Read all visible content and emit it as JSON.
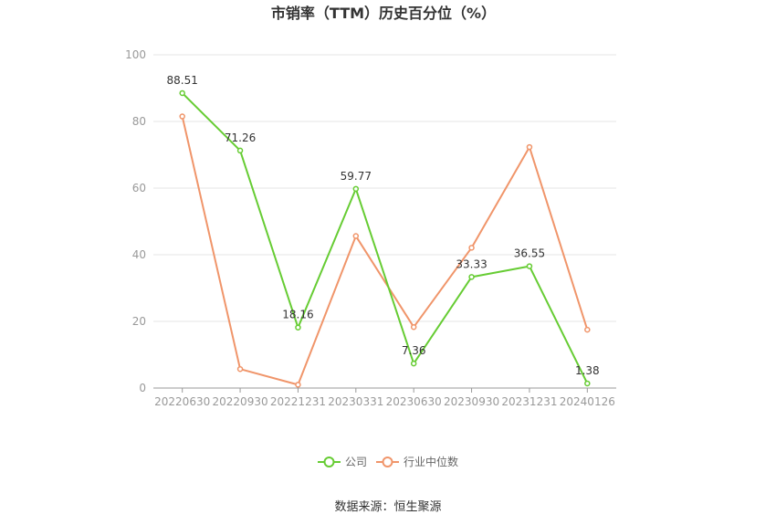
{
  "chart_data": {
    "type": "line",
    "title": "市销率（TTM）历史百分位（%）",
    "categories": [
      "20220630",
      "20220930",
      "20221231",
      "20230331",
      "20230630",
      "20230930",
      "20231231",
      "20240126"
    ],
    "ylim": [
      0,
      100
    ],
    "yticks": [
      0,
      20,
      40,
      60,
      80,
      100
    ],
    "grid": true,
    "legend_position": "bottom-center",
    "series": [
      {
        "name": "公司",
        "color": "#66cc33",
        "values": [
          88.51,
          71.26,
          18.16,
          59.77,
          7.36,
          33.33,
          36.55,
          1.38
        ],
        "labels": [
          "88.51",
          "71.26",
          "18.16",
          "59.77",
          "7.36",
          "33.33",
          "36.55",
          "1.38"
        ]
      },
      {
        "name": "行业中位数",
        "color": "#f0956a",
        "values": [
          81.5,
          5.7,
          1.0,
          45.6,
          18.3,
          42.1,
          72.3,
          17.5
        ]
      }
    ]
  },
  "source": "数据来源：恒生聚源"
}
